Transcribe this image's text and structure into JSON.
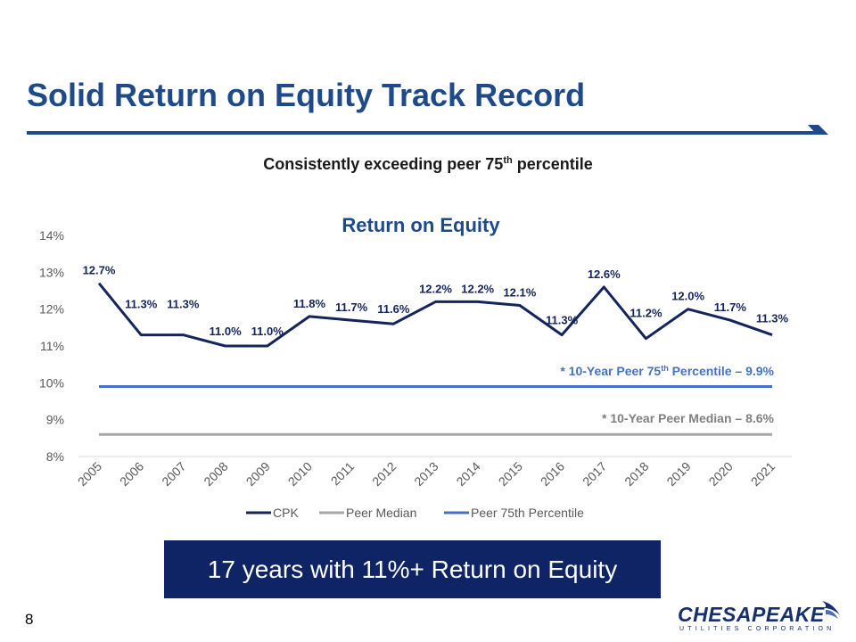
{
  "slide": {
    "title": "Solid Return on Equity Track Record",
    "subtitle_main": "Consistently exceeding peer 75",
    "subtitle_sup": "th",
    "subtitle_rest": " percentile",
    "callout": "17 years with 11%+ Return on Equity",
    "page_number": "8",
    "logo_text": "CHESAPEAKE",
    "logo_subtext": "UTILITIES CORPORATION"
  },
  "colors": {
    "title": "#1e4a8a",
    "cpk": "#14245c",
    "peer_median": "#a6a6a6",
    "peer_75th": "#4472c4",
    "callout_bg": "#0f2464"
  },
  "chart_data": {
    "type": "line",
    "title": "Return on Equity",
    "categories": [
      "2005",
      "2006",
      "2007",
      "2008",
      "2009",
      "2010",
      "2011",
      "2012",
      "2013",
      "2014",
      "2015",
      "2016",
      "2017",
      "2018",
      "2019",
      "2020",
      "2021"
    ],
    "series": [
      {
        "name": "CPK",
        "values": [
          12.7,
          11.3,
          11.3,
          11.0,
          11.0,
          11.8,
          11.7,
          11.6,
          12.2,
          12.2,
          12.1,
          11.3,
          12.6,
          11.2,
          12.0,
          11.7,
          11.3
        ],
        "labels": [
          "12.7%",
          "11.3%",
          "11.3%",
          "11.0%",
          "11.0%",
          "11.8%",
          "11.7%",
          "11.6%",
          "12.2%",
          "12.2%",
          "12.1%",
          "11.3%",
          "12.6%",
          "11.2%",
          "12.0%",
          "11.7%",
          "11.3%"
        ]
      },
      {
        "name": "Peer Median",
        "values": [
          8.6,
          8.6,
          8.6,
          8.6,
          8.6,
          8.6,
          8.6,
          8.6,
          8.6,
          8.6,
          8.6,
          8.6,
          8.6,
          8.6,
          8.6,
          8.6,
          8.6
        ]
      },
      {
        "name": "Peer 75th Percentile",
        "values": [
          9.9,
          9.9,
          9.9,
          9.9,
          9.9,
          9.9,
          9.9,
          9.9,
          9.9,
          9.9,
          9.9,
          9.9,
          9.9,
          9.9,
          9.9,
          9.9,
          9.9
        ]
      }
    ],
    "ylim": [
      8,
      14
    ],
    "yticks": [
      "8%",
      "9%",
      "10%",
      "11%",
      "12%",
      "13%",
      "14%"
    ],
    "legend_position": "bottom",
    "grid": false,
    "annotations": {
      "peer_75th_main": "* 10-Year Peer 75",
      "peer_75th_sup": "th",
      "peer_75th_rest": " Percentile – 9.9%",
      "peer_median": "* 10-Year Peer Median – 8.6%"
    }
  }
}
